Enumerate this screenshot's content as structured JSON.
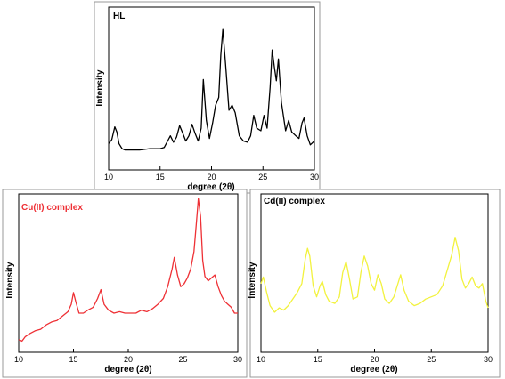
{
  "chart_data": [
    {
      "type": "line",
      "title": "HL",
      "xlabel": "degree (2θ)",
      "ylabel": "Intensity",
      "xlim": [
        10,
        30
      ],
      "xticks": [
        10,
        15,
        20,
        25,
        30
      ],
      "color": "#000000",
      "series": [
        {
          "x": [
            10.0,
            10.3,
            10.6,
            10.8,
            11.0,
            11.3,
            11.6,
            12.0,
            13.0,
            14.0,
            15.0,
            15.4,
            15.8,
            16.0,
            16.3,
            16.6,
            16.9,
            17.2,
            17.5,
            17.8,
            18.1,
            18.4,
            18.7,
            19.0,
            19.2,
            19.5,
            19.8,
            20.1,
            20.4,
            20.7,
            20.9,
            21.1,
            21.4,
            21.7,
            22.0,
            22.3,
            22.7,
            23.1,
            23.5,
            23.8,
            24.1,
            24.4,
            24.8,
            25.1,
            25.4,
            25.7,
            25.9,
            26.1,
            26.3,
            26.5,
            26.8,
            27.2,
            27.5,
            27.8,
            28.2,
            28.5,
            28.8,
            29.0,
            29.3,
            29.6,
            30.0
          ],
          "y": [
            0.06,
            0.09,
            0.19,
            0.15,
            0.06,
            0.02,
            0.01,
            0.01,
            0.01,
            0.02,
            0.02,
            0.03,
            0.09,
            0.12,
            0.07,
            0.11,
            0.2,
            0.14,
            0.08,
            0.12,
            0.21,
            0.14,
            0.08,
            0.18,
            0.56,
            0.24,
            0.1,
            0.22,
            0.36,
            0.42,
            0.75,
            0.95,
            0.64,
            0.32,
            0.36,
            0.3,
            0.12,
            0.08,
            0.07,
            0.12,
            0.28,
            0.18,
            0.16,
            0.28,
            0.18,
            0.5,
            0.79,
            0.66,
            0.55,
            0.72,
            0.38,
            0.16,
            0.24,
            0.15,
            0.12,
            0.1,
            0.22,
            0.26,
            0.12,
            0.05,
            0.08
          ]
        }
      ]
    },
    {
      "type": "line",
      "title": "Cu(II) complex",
      "xlabel": "degree (2θ)",
      "ylabel": "Intensity",
      "xlim": [
        10,
        30
      ],
      "xticks": [
        10,
        15,
        20,
        25,
        30
      ],
      "color": "#ee3035",
      "series": [
        {
          "x": [
            10.0,
            10.3,
            10.6,
            11.0,
            11.5,
            12.0,
            12.5,
            13.0,
            13.5,
            14.0,
            14.5,
            14.8,
            15.0,
            15.2,
            15.5,
            15.9,
            16.3,
            16.8,
            17.2,
            17.5,
            17.8,
            18.2,
            18.7,
            19.2,
            19.7,
            20.2,
            20.7,
            21.2,
            21.7,
            22.2,
            22.7,
            23.2,
            23.6,
            24.0,
            24.2,
            24.5,
            24.8,
            25.1,
            25.4,
            25.7,
            26.0,
            26.2,
            26.4,
            26.6,
            26.8,
            27.0,
            27.3,
            27.6,
            27.9,
            28.2,
            28.5,
            28.8,
            29.1,
            29.4,
            29.7,
            30.0
          ],
          "y": [
            0.02,
            0.01,
            0.04,
            0.06,
            0.08,
            0.09,
            0.12,
            0.14,
            0.15,
            0.18,
            0.21,
            0.26,
            0.34,
            0.28,
            0.2,
            0.2,
            0.22,
            0.24,
            0.3,
            0.36,
            0.26,
            0.22,
            0.2,
            0.21,
            0.2,
            0.2,
            0.2,
            0.22,
            0.21,
            0.23,
            0.26,
            0.3,
            0.38,
            0.5,
            0.58,
            0.46,
            0.38,
            0.4,
            0.44,
            0.5,
            0.62,
            0.8,
            0.98,
            0.86,
            0.56,
            0.45,
            0.42,
            0.44,
            0.46,
            0.38,
            0.32,
            0.28,
            0.26,
            0.24,
            0.2,
            0.2
          ]
        }
      ]
    },
    {
      "type": "line",
      "title": "Cd(II) complex",
      "xlabel": "degree (2θ)",
      "ylabel": "Intensity",
      "xlim": [
        10,
        30
      ],
      "xticks": [
        10,
        15,
        20,
        25,
        30
      ],
      "color": "#f2f23e",
      "series": [
        {
          "x": [
            10.0,
            10.2,
            10.5,
            10.8,
            11.2,
            11.6,
            12.0,
            12.4,
            12.8,
            13.2,
            13.6,
            13.9,
            14.1,
            14.3,
            14.6,
            14.9,
            15.2,
            15.4,
            15.7,
            16.0,
            16.5,
            16.9,
            17.2,
            17.5,
            17.8,
            18.1,
            18.5,
            18.8,
            19.1,
            19.4,
            19.7,
            20.0,
            20.3,
            20.6,
            20.9,
            21.3,
            21.7,
            22.0,
            22.3,
            22.6,
            23.0,
            23.5,
            24.0,
            24.5,
            25.0,
            25.5,
            26.0,
            26.4,
            26.8,
            27.1,
            27.4,
            27.7,
            28.0,
            28.3,
            28.6,
            28.9,
            29.2,
            29.5,
            29.8,
            30.0
          ],
          "y": [
            0.3,
            0.36,
            0.22,
            0.1,
            0.04,
            0.08,
            0.06,
            0.1,
            0.16,
            0.22,
            0.3,
            0.52,
            0.62,
            0.55,
            0.28,
            0.18,
            0.28,
            0.32,
            0.2,
            0.14,
            0.12,
            0.18,
            0.4,
            0.5,
            0.34,
            0.16,
            0.18,
            0.4,
            0.55,
            0.46,
            0.3,
            0.24,
            0.38,
            0.3,
            0.16,
            0.12,
            0.18,
            0.28,
            0.38,
            0.24,
            0.14,
            0.1,
            0.12,
            0.16,
            0.18,
            0.2,
            0.28,
            0.42,
            0.56,
            0.72,
            0.6,
            0.34,
            0.26,
            0.3,
            0.36,
            0.28,
            0.26,
            0.3,
            0.14,
            0.08
          ]
        }
      ]
    }
  ]
}
